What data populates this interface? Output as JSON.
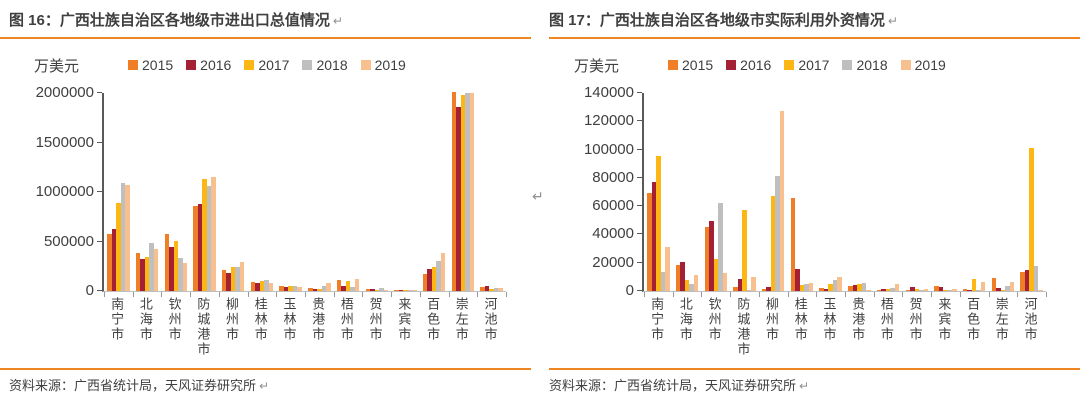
{
  "colors": {
    "accent_rule": "#ee8422",
    "title_text": "#3f3f3f",
    "axis_line": "#595959",
    "baseline": "#bfbfbf",
    "series_2015": "#f07e26",
    "series_2016": "#a32035",
    "series_2017": "#fdb714",
    "series_2018": "#bfbfbf",
    "series_2019": "#f8c08e"
  },
  "panels": [
    {
      "title": "图 16：广西壮族自治区各地级市进出口总值情况",
      "return_mark": "↵",
      "unit": "万美元",
      "source": "资料来源：广西省统计局，天风证券研究所"
    },
    {
      "title": "图 17：广西壮族自治区各地级市实际利用外资情况",
      "return_mark": "↵",
      "unit": "万美元",
      "source": "资料来源：广西省统计局，天风证券研究所"
    }
  ],
  "mid_return_mark": "↵",
  "chart_data": [
    {
      "type": "bar",
      "title": "图 16：广西壮族自治区各地级市进出口总值情况",
      "unit_label": "万美元",
      "ylabel": "万美元",
      "xlabel": "",
      "grid": false,
      "legend_position": "top",
      "ylim": [
        0,
        2000000
      ],
      "yticks": [
        0,
        500000,
        1000000,
        1500000,
        2000000
      ],
      "categories": [
        "南宁市",
        "北海市",
        "钦州市",
        "防城港市",
        "柳州市",
        "桂林市",
        "玉林市",
        "贵港市",
        "梧州市",
        "贺州市",
        "来宾市",
        "百色市",
        "崇左市",
        "河池市"
      ],
      "series": [
        {
          "name": "2015",
          "color": "#f07e26",
          "values": [
            575000,
            385000,
            580000,
            860000,
            215000,
            90000,
            55000,
            30000,
            110000,
            25000,
            8000,
            175000,
            2010000,
            40000
          ]
        },
        {
          "name": "2016",
          "color": "#a32035",
          "values": [
            625000,
            325000,
            445000,
            875000,
            185000,
            80000,
            45000,
            22000,
            55000,
            18000,
            6000,
            220000,
            1855000,
            50000
          ]
        },
        {
          "name": "2017",
          "color": "#fdb714",
          "values": [
            890000,
            345000,
            505000,
            1130000,
            245000,
            100000,
            50000,
            25000,
            100000,
            15000,
            10000,
            245000,
            1985000,
            20000
          ]
        },
        {
          "name": "2018",
          "color": "#bfbfbf",
          "values": [
            1090000,
            485000,
            335000,
            1065000,
            245000,
            115000,
            55000,
            50000,
            45000,
            28000,
            12000,
            300000,
            2000000,
            30000
          ]
        },
        {
          "name": "2019",
          "color": "#f8c08e",
          "values": [
            1070000,
            425000,
            285000,
            1150000,
            295000,
            85000,
            40000,
            80000,
            120000,
            12000,
            15000,
            385000,
            2000000,
            35000
          ]
        }
      ]
    },
    {
      "type": "bar",
      "title": "图 17：广西壮族自治区各地级市实际利用外资情况",
      "unit_label": "万美元",
      "ylabel": "万美元",
      "xlabel": "",
      "grid": false,
      "legend_position": "top",
      "ylim": [
        0,
        140000
      ],
      "yticks": [
        0,
        20000,
        40000,
        60000,
        80000,
        100000,
        120000,
        140000
      ],
      "categories": [
        "南宁市",
        "北海市",
        "钦州市",
        "防城港市",
        "柳州市",
        "桂林市",
        "玉林市",
        "贵港市",
        "梧州市",
        "贺州市",
        "来宾市",
        "百色市",
        "崇左市",
        "河池市"
      ],
      "series": [
        {
          "name": "2015",
          "color": "#f07e26",
          "values": [
            69500,
            18500,
            45000,
            2500,
            1500,
            65500,
            2000,
            3500,
            800,
            700,
            3800,
            1500,
            9000,
            13500
          ]
        },
        {
          "name": "2016",
          "color": "#a32035",
          "values": [
            77000,
            20500,
            49500,
            8500,
            2500,
            15500,
            1200,
            4300,
            1200,
            2800,
            3000,
            700,
            2000,
            15000
          ]
        },
        {
          "name": "2017",
          "color": "#fdb714",
          "values": [
            95500,
            8000,
            22500,
            57000,
            67500,
            4000,
            5000,
            5000,
            1500,
            1500,
            500,
            8800,
            400,
            101000
          ]
        },
        {
          "name": "2018",
          "color": "#bfbfbf",
          "values": [
            13500,
            5000,
            62000,
            1000,
            81000,
            5000,
            7500,
            5800,
            2000,
            1000,
            500,
            700,
            3500,
            17800
          ]
        },
        {
          "name": "2019",
          "color": "#f8c08e",
          "values": [
            31000,
            11000,
            13000,
            10000,
            127000,
            6000,
            10000,
            800,
            5000,
            1500,
            1500,
            6400,
            6500,
            800
          ]
        }
      ]
    }
  ]
}
